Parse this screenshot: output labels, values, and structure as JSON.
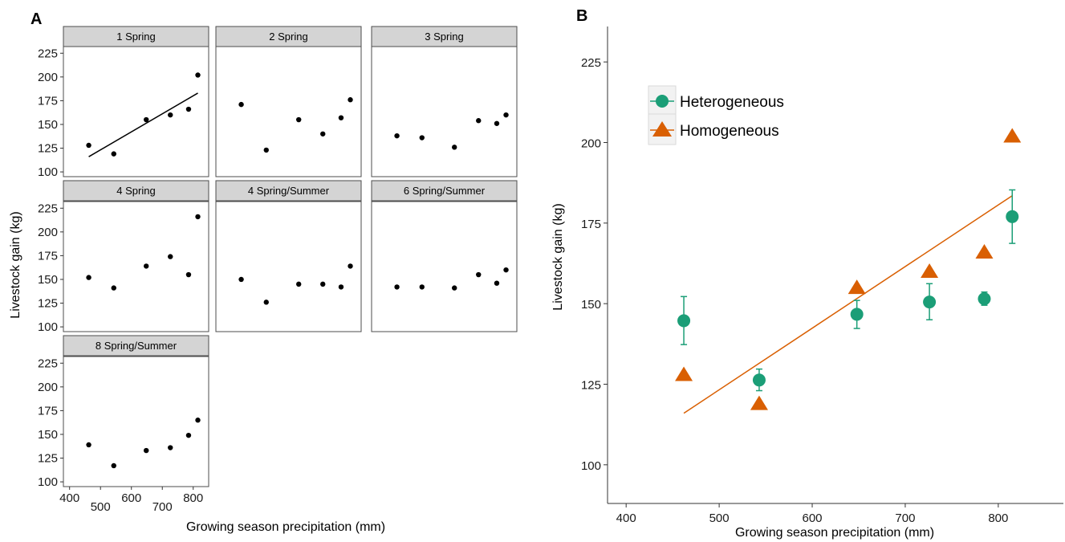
{
  "panels": {
    "a_label": "A",
    "b_label": "B"
  },
  "chart_data": [
    {
      "type": "scatter",
      "panel": "A",
      "ylabel": "Livestock gain (kg)",
      "xlabel": "Growing season precipitation (mm)",
      "xlim": [
        380,
        850
      ],
      "ylim": [
        95,
        232
      ],
      "xticks": [
        400,
        500,
        600,
        700,
        800
      ],
      "xtick_labels": [
        "400",
        "",
        "600",
        "",
        "800"
      ],
      "xtick_labels_minor": [
        "",
        "500",
        "",
        "700",
        ""
      ],
      "yticks": [
        100,
        125,
        150,
        175,
        200,
        225
      ],
      "facets": [
        {
          "name": "1 Spring",
          "x": [
            462,
            543,
            648,
            726,
            785,
            815
          ],
          "y": [
            128,
            119,
            155,
            160,
            166,
            202
          ],
          "fit": {
            "x": [
              462,
              815
            ],
            "y": [
              116,
              183
            ]
          }
        },
        {
          "name": "2 Spring",
          "x": [
            462,
            543,
            648,
            726,
            785,
            815
          ],
          "y": [
            171,
            123,
            155,
            140,
            157,
            176
          ]
        },
        {
          "name": "3 Spring",
          "x": [
            462,
            543,
            648,
            726,
            785,
            815
          ],
          "y": [
            138,
            136,
            126,
            154,
            151,
            160
          ]
        },
        {
          "name": "4 Spring",
          "x": [
            462,
            543,
            648,
            726,
            785,
            815
          ],
          "y": [
            152,
            141,
            164,
            174,
            155,
            216
          ]
        },
        {
          "name": "4 Spring/Summer",
          "x": [
            462,
            543,
            648,
            726,
            785,
            815
          ],
          "y": [
            150,
            126,
            145,
            145,
            142,
            164
          ]
        },
        {
          "name": "6 Spring/Summer",
          "x": [
            462,
            543,
            648,
            726,
            785,
            815
          ],
          "y": [
            142,
            142,
            141,
            155,
            146,
            160
          ]
        },
        {
          "name": "8 Spring/Summer",
          "x": [
            462,
            543,
            648,
            726,
            785,
            815
          ],
          "y": [
            139,
            117,
            133,
            136,
            149,
            165
          ]
        }
      ]
    },
    {
      "type": "scatter",
      "panel": "B",
      "ylabel": "Livestock gain (kg)",
      "xlabel": "Growing season precipitation (mm)",
      "xlim": [
        380,
        870
      ],
      "ylim": [
        88,
        236
      ],
      "xticks": [
        400,
        500,
        600,
        700,
        800
      ],
      "yticks": [
        100,
        125,
        150,
        175,
        200,
        225
      ],
      "legend": "top-left",
      "series": [
        {
          "name": "Heterogeneous",
          "color": "#1b9e77",
          "marker": "circle",
          "x": [
            462,
            543,
            648,
            726,
            785,
            815
          ],
          "y": [
            144.7,
            126.3,
            146.7,
            150.5,
            151.5,
            177
          ],
          "err_low": [
            137.3,
            123,
            142.3,
            145,
            149.5,
            168.7
          ],
          "err_high": [
            152.2,
            129.7,
            151,
            156.2,
            153.6,
            185.3
          ]
        },
        {
          "name": "Homogeneous",
          "color": "#d95f02",
          "marker": "triangle",
          "x": [
            462,
            543,
            648,
            726,
            785,
            815
          ],
          "y": [
            128,
            119,
            155,
            160,
            166,
            202
          ]
        }
      ],
      "fit": {
        "color": "#d95f02",
        "x": [
          462,
          815
        ],
        "y": [
          116,
          183.5
        ]
      }
    }
  ]
}
